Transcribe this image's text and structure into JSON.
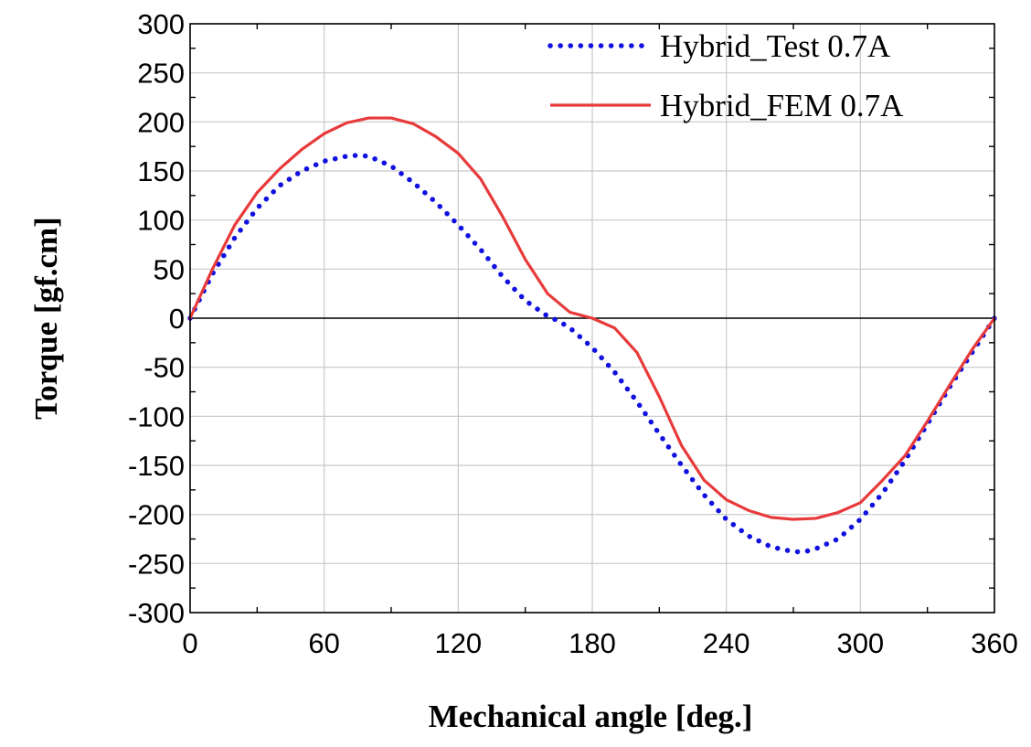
{
  "chart_data": {
    "type": "line",
    "xlabel": "Mechanical angle [deg.]",
    "ylabel": "Torque [gf.cm]",
    "xlim": [
      0,
      360
    ],
    "ylim": [
      -300,
      300
    ],
    "xticks": [
      "0",
      "60",
      "120",
      "180",
      "240",
      "300",
      "360"
    ],
    "yticks": [
      "300",
      "250",
      "200",
      "150",
      "100",
      "50",
      "0",
      "-50",
      "-100",
      "-150",
      "-200",
      "-250",
      "-300"
    ],
    "grid": true,
    "legend_position": "top-right",
    "series": [
      {
        "name": "Hybrid_Test 0.7A",
        "style": "dotted",
        "color": "#1010e0",
        "x": [
          0,
          10,
          20,
          30,
          40,
          50,
          60,
          70,
          75,
          80,
          90,
          100,
          110,
          120,
          130,
          140,
          150,
          160,
          165,
          170,
          180,
          190,
          200,
          210,
          220,
          230,
          240,
          250,
          260,
          270,
          275,
          280,
          290,
          300,
          310,
          320,
          330,
          340,
          350,
          360
        ],
        "y": [
          0,
          45,
          82,
          112,
          135,
          150,
          160,
          165,
          166,
          165,
          155,
          138,
          118,
          95,
          70,
          42,
          18,
          2,
          -3,
          -10,
          -30,
          -55,
          -85,
          -118,
          -150,
          -180,
          -205,
          -222,
          -233,
          -238,
          -238,
          -235,
          -225,
          -205,
          -178,
          -145,
          -108,
          -70,
          -35,
          0
        ]
      },
      {
        "name": "Hybrid_FEM 0.7A",
        "style": "solid",
        "color": "#e83a3a",
        "x": [
          0,
          10,
          20,
          30,
          40,
          50,
          60,
          70,
          80,
          90,
          100,
          110,
          120,
          130,
          140,
          150,
          160,
          170,
          180,
          190,
          200,
          210,
          220,
          230,
          240,
          250,
          260,
          270,
          280,
          290,
          300,
          310,
          320,
          330,
          340,
          350,
          360
        ],
        "y": [
          0,
          50,
          95,
          128,
          152,
          172,
          188,
          199,
          204,
          204,
          198,
          185,
          168,
          142,
          103,
          60,
          25,
          6,
          0,
          -10,
          -35,
          -80,
          -130,
          -165,
          -185,
          -196,
          -203,
          -205,
          -204,
          -198,
          -188,
          -165,
          -140,
          -105,
          -68,
          -32,
          0
        ]
      }
    ]
  }
}
